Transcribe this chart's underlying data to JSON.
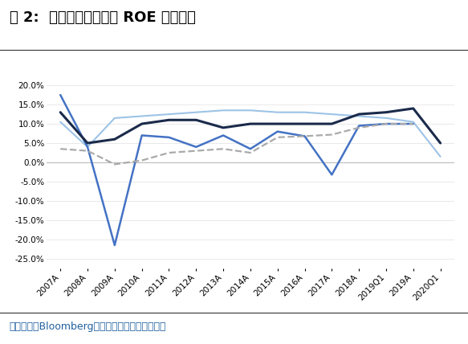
{
  "title": "图 2:  美国四大行一季度 ROE 大幅下降",
  "source_text": "资料来源：Bloomberg，国信证券经济研究所整理",
  "x_labels": [
    "2007A",
    "2008A",
    "2009A",
    "2010A",
    "2011A",
    "2012A",
    "2013A",
    "2014A",
    "2015A",
    "2016A",
    "2017A",
    "2018A",
    "2019Q1",
    "2019A",
    "2020Q1"
  ],
  "series": {
    "摩根大通": {
      "values": [
        0.13,
        0.05,
        0.06,
        0.1,
        0.11,
        0.11,
        0.09,
        0.1,
        0.1,
        0.1,
        0.1,
        0.125,
        0.13,
        0.14,
        0.05
      ],
      "color": "#1a2a4a",
      "linewidth": 2.2,
      "linestyle": "solid",
      "zorder": 5
    },
    "美国银行": {
      "values": [
        0.035,
        0.03,
        -0.005,
        0.005,
        0.025,
        0.03,
        0.035,
        0.025,
        0.065,
        0.068,
        0.072,
        0.09,
        0.1,
        0.1,
        null
      ],
      "color": "#aaaaaa",
      "linewidth": 1.6,
      "linestyle": "dashed",
      "zorder": 4
    },
    "花旗集团": {
      "values": [
        0.175,
        0.04,
        -0.215,
        0.07,
        0.065,
        0.04,
        0.07,
        0.035,
        0.08,
        0.068,
        -0.032,
        0.095,
        0.1,
        0.1,
        null
      ],
      "color": "#4472c4",
      "linewidth": 1.8,
      "linestyle": "solid",
      "zorder": 3
    },
    "富国银行": {
      "values": [
        0.105,
        0.04,
        0.115,
        0.12,
        0.125,
        0.13,
        0.135,
        0.135,
        0.13,
        0.13,
        0.125,
        0.12,
        0.115,
        0.105,
        0.015
      ],
      "color": "#9dc3e6",
      "linewidth": 1.5,
      "linestyle": "solid",
      "zorder": 2
    }
  },
  "ylim": [
    -0.275,
    0.225
  ],
  "yticks": [
    -0.25,
    -0.2,
    -0.15,
    -0.1,
    -0.05,
    0.0,
    0.05,
    0.1,
    0.15,
    0.2
  ],
  "background_color": "#ffffff",
  "title_fontsize": 13,
  "source_fontsize": 9,
  "source_color": "#2060a0",
  "tick_fontsize": 7.5,
  "legend_fontsize": 9
}
